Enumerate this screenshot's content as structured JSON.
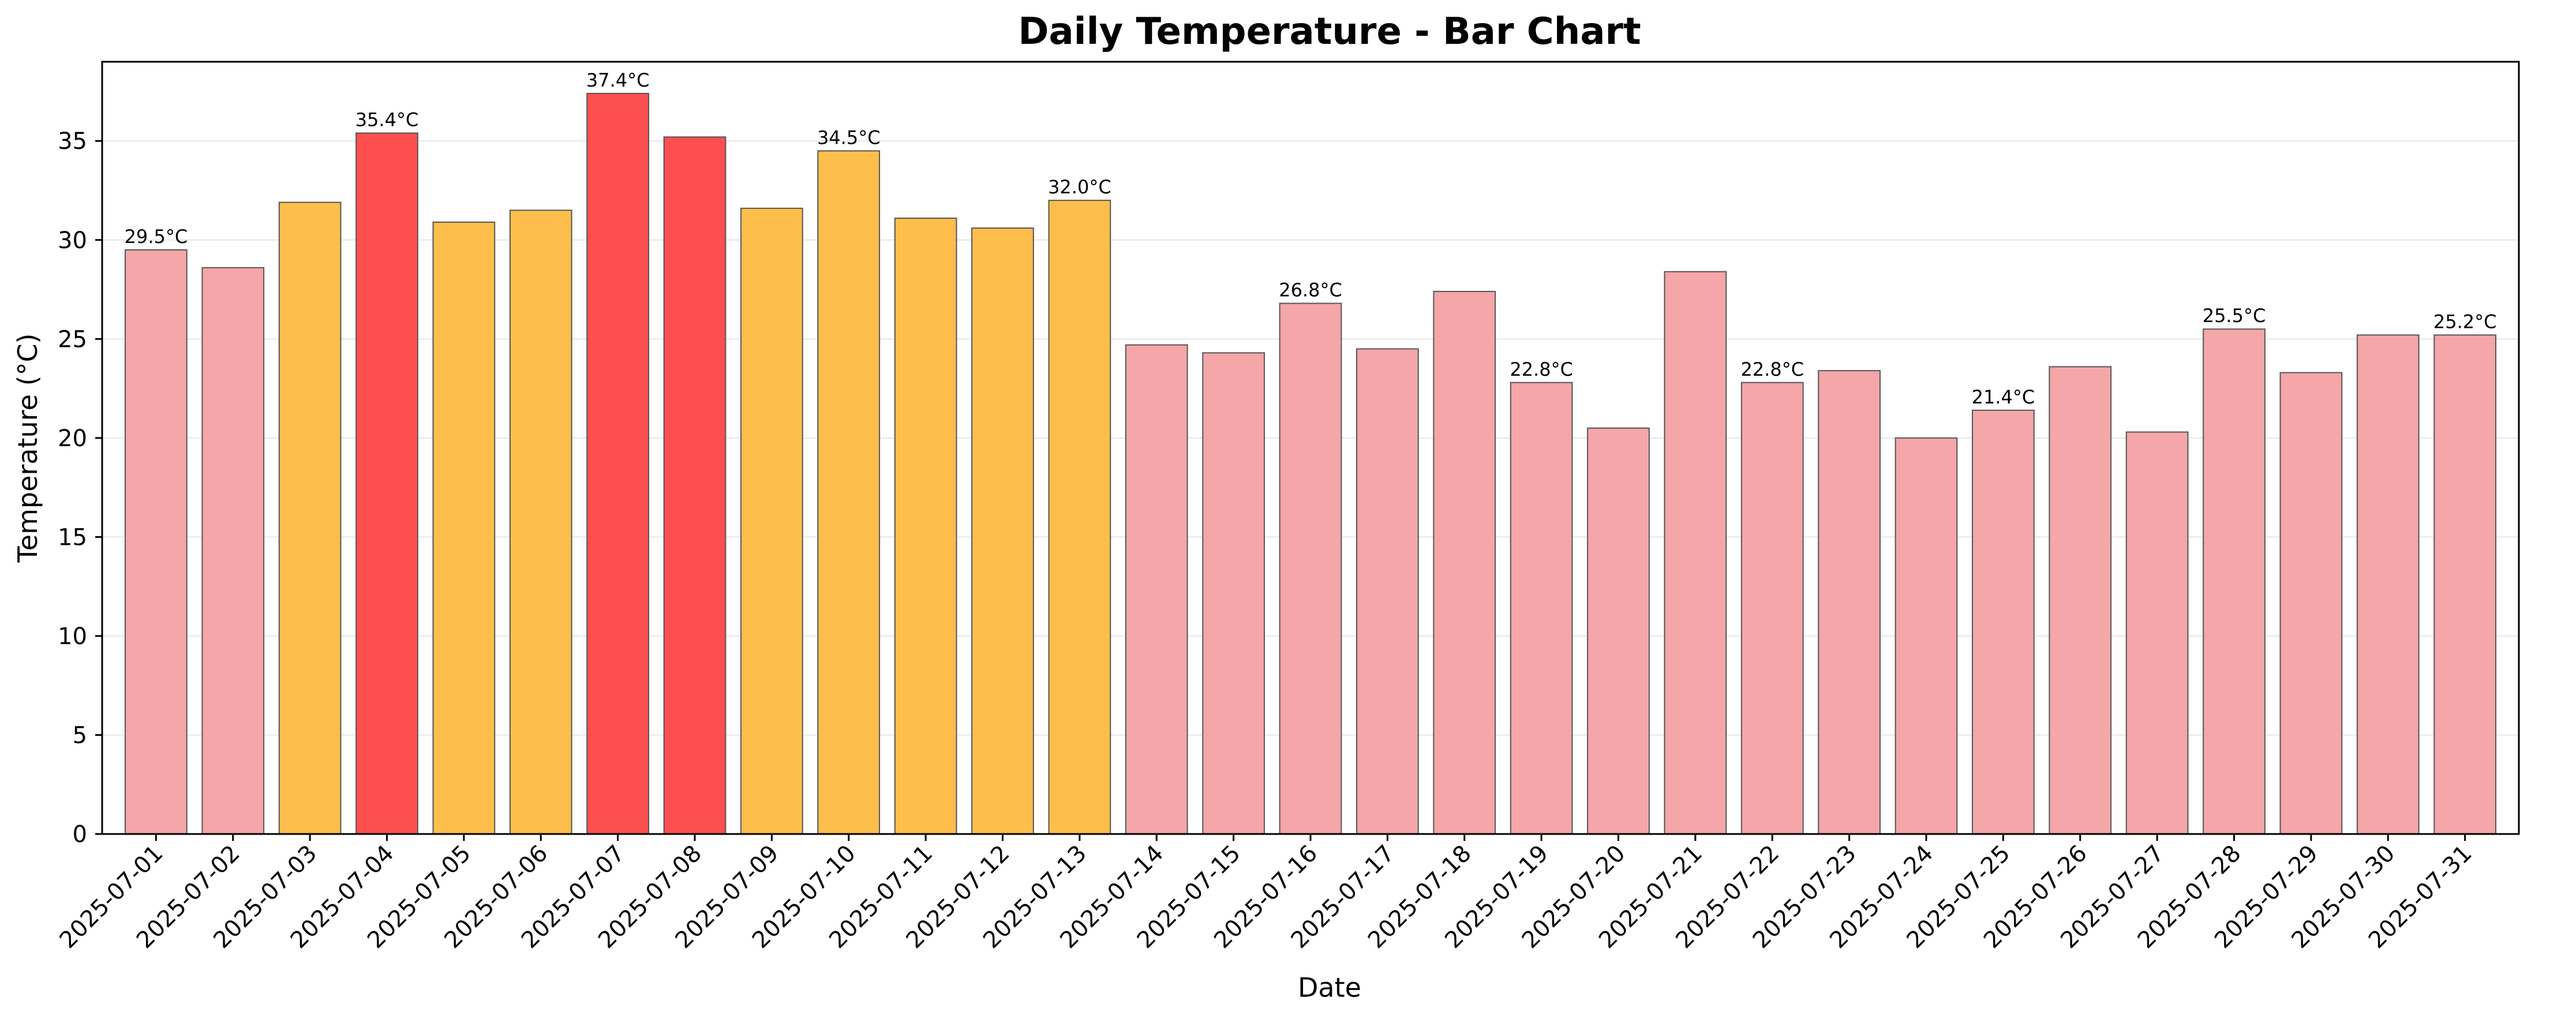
{
  "chart_data": {
    "type": "bar",
    "title": "Daily Temperature - Bar Chart",
    "xlabel": "Date",
    "ylabel": "Temperature (°C)",
    "ylim": [
      0,
      39
    ],
    "yticks": [
      0,
      5,
      10,
      15,
      20,
      25,
      30,
      35
    ],
    "grid": "horizontal",
    "categories": [
      "2025-07-01",
      "2025-07-02",
      "2025-07-03",
      "2025-07-04",
      "2025-07-05",
      "2025-07-06",
      "2025-07-07",
      "2025-07-08",
      "2025-07-09",
      "2025-07-10",
      "2025-07-11",
      "2025-07-12",
      "2025-07-13",
      "2025-07-14",
      "2025-07-15",
      "2025-07-16",
      "2025-07-17",
      "2025-07-18",
      "2025-07-19",
      "2025-07-20",
      "2025-07-21",
      "2025-07-22",
      "2025-07-23",
      "2025-07-24",
      "2025-07-25",
      "2025-07-26",
      "2025-07-27",
      "2025-07-28",
      "2025-07-29",
      "2025-07-30",
      "2025-07-31"
    ],
    "values": [
      29.5,
      28.6,
      31.9,
      35.4,
      30.9,
      31.5,
      37.4,
      35.2,
      31.6,
      34.5,
      31.1,
      30.6,
      32.0,
      24.7,
      24.3,
      26.8,
      24.5,
      27.4,
      22.8,
      20.5,
      28.4,
      22.8,
      23.4,
      20.0,
      21.4,
      23.6,
      20.3,
      25.5,
      23.3,
      25.2,
      25.2
    ],
    "bar_colors": [
      "#f4a6a8",
      "#f4a6a8",
      "#fdbe4c",
      "#fd4f4f",
      "#fdbe4c",
      "#fdbe4c",
      "#fd4f4f",
      "#fd4f4f",
      "#fdbe4c",
      "#fdbe4c",
      "#fdbe4c",
      "#fdbe4c",
      "#fdbe4c",
      "#f4a6a8",
      "#f4a6a8",
      "#f4a6a8",
      "#f4a6a8",
      "#f4a6a8",
      "#f4a6a8",
      "#f4a6a8",
      "#f4a6a8",
      "#f4a6a8",
      "#f4a6a8",
      "#f4a6a8",
      "#f4a6a8",
      "#f4a6a8",
      "#f4a6a8",
      "#f4a6a8",
      "#f4a6a8",
      "#f4a6a8",
      "#f4a6a8"
    ],
    "data_labels": [
      {
        "index": 0,
        "text": "29.5°C"
      },
      {
        "index": 3,
        "text": "35.4°C"
      },
      {
        "index": 6,
        "text": "37.4°C"
      },
      {
        "index": 9,
        "text": "34.5°C"
      },
      {
        "index": 12,
        "text": "32.0°C"
      },
      {
        "index": 15,
        "text": "26.8°C"
      },
      {
        "index": 18,
        "text": "22.8°C"
      },
      {
        "index": 21,
        "text": "22.8°C"
      },
      {
        "index": 24,
        "text": "21.4°C"
      },
      {
        "index": 27,
        "text": "25.5°C"
      },
      {
        "index": 30,
        "text": "25.2°C"
      }
    ],
    "colors": {
      "bar_edge": "#555555",
      "grid": "#e6e6e6",
      "axis": "#000000"
    }
  }
}
